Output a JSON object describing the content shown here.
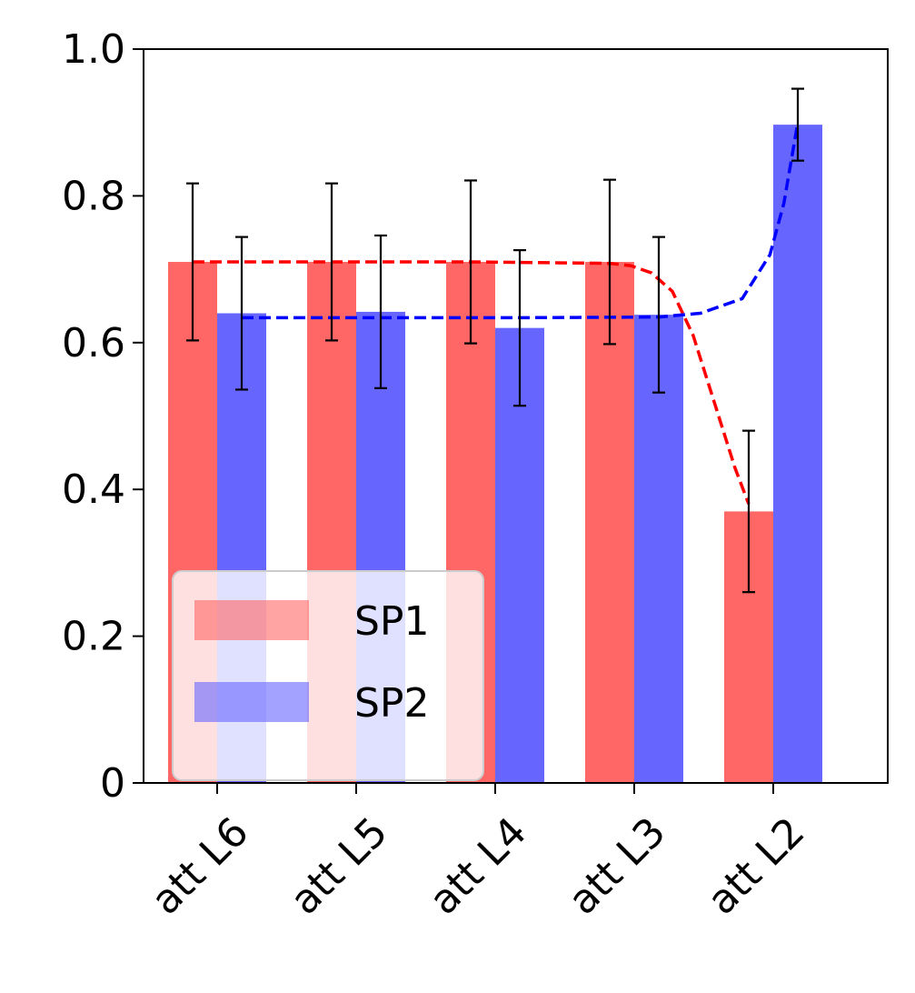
{
  "chart_data": {
    "type": "bar",
    "categories": [
      "att L6",
      "att L5",
      "att L4",
      "att L3",
      "att L2"
    ],
    "series": [
      {
        "name": "SP1",
        "color": "#ff6666",
        "values": [
          0.71,
          0.71,
          0.71,
          0.71,
          0.37
        ],
        "errors": [
          0.107,
          0.107,
          0.111,
          0.112,
          0.11
        ]
      },
      {
        "name": "SP2",
        "color": "#6666ff",
        "values": [
          0.64,
          0.642,
          0.62,
          0.638,
          0.897
        ],
        "errors": [
          0.104,
          0.104,
          0.106,
          0.106,
          0.049
        ]
      }
    ],
    "trend_lines": [
      {
        "series": "SP1",
        "color": "#ff0000",
        "style": "dashed",
        "x": [
          0,
          1,
          2,
          3,
          3.15,
          3.3,
          3.45,
          3.6,
          3.75,
          3.9,
          4.0
        ],
        "y": [
          0.71,
          0.71,
          0.71,
          0.708,
          0.705,
          0.695,
          0.67,
          0.61,
          0.52,
          0.43,
          0.38
        ]
      },
      {
        "series": "SP2",
        "color": "#0000ff",
        "style": "dashed",
        "x": [
          0,
          1,
          2,
          3,
          3.3,
          3.6,
          3.8,
          3.9,
          4.0
        ],
        "y": [
          0.634,
          0.634,
          0.634,
          0.635,
          0.64,
          0.66,
          0.72,
          0.79,
          0.9
        ]
      }
    ],
    "ylim": [
      0,
      1.0
    ],
    "yticks": [
      {
        "value": 0,
        "label": "0"
      },
      {
        "value": 0.2,
        "label": "0.2"
      },
      {
        "value": 0.4,
        "label": "0.4"
      },
      {
        "value": 0.6,
        "label": "0.6"
      },
      {
        "value": 0.8,
        "label": "0.8"
      },
      {
        "value": 1.0,
        "label": "1.0"
      }
    ],
    "xlabel": "",
    "ylabel": "",
    "title": "",
    "grid": false,
    "legend": {
      "placement": "lower-left",
      "entries": [
        "SP1",
        "SP2"
      ]
    }
  }
}
